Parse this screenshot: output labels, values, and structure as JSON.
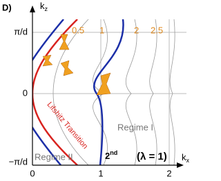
{
  "panel_label": "D)",
  "axes": {
    "y_label": "k",
    "y_sub": "z",
    "x_label": "k",
    "x_sub": "x",
    "y_ticks": [
      "π/d",
      "0",
      "−π/d"
    ],
    "x_ticks": [
      "0",
      "1",
      "2"
    ]
  },
  "contour_labels": [
    "0.5",
    "1",
    "2",
    "2.5"
  ],
  "annotations": {
    "lifshitz": "Lifshitz Transition",
    "regime_1": "Regime I",
    "regime_2": "Regime II",
    "order": "2",
    "order_sup": "nd",
    "lambda": "(λ = 1)"
  }
}
